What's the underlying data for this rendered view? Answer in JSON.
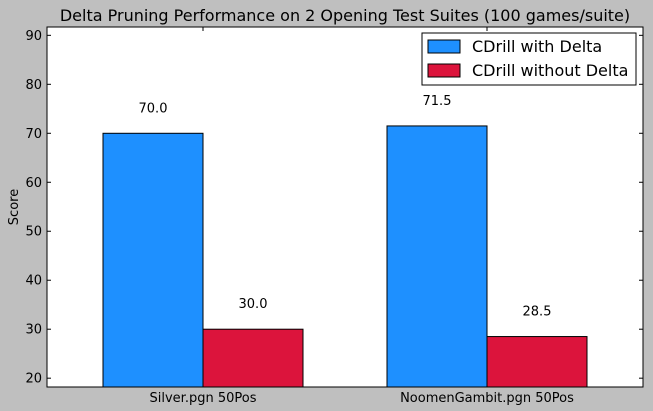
{
  "chart_data": {
    "type": "bar",
    "title": "Delta Pruning Performance on 2 Opening Test Suites (100 games/suite)",
    "xlabel": "",
    "ylabel": "Score",
    "categories": [
      "Silver.pgn 50Pos",
      "NoomenGambit.pgn 50Pos"
    ],
    "series": [
      {
        "name": "CDrill with Delta",
        "values": [
          70.0,
          71.5
        ],
        "color": "#1e90ff"
      },
      {
        "name": "CDrill without Delta",
        "values": [
          30.0,
          28.5
        ],
        "color": "#dc143c"
      }
    ],
    "data_labels": [
      [
        "70.0",
        "71.5"
      ],
      [
        "30.0",
        "28.5"
      ]
    ],
    "ylim": [
      18.2,
      91.7
    ],
    "yticks": [
      20,
      30,
      40,
      50,
      60,
      70,
      80,
      90
    ],
    "grid": false,
    "legend_position": "top-right"
  }
}
